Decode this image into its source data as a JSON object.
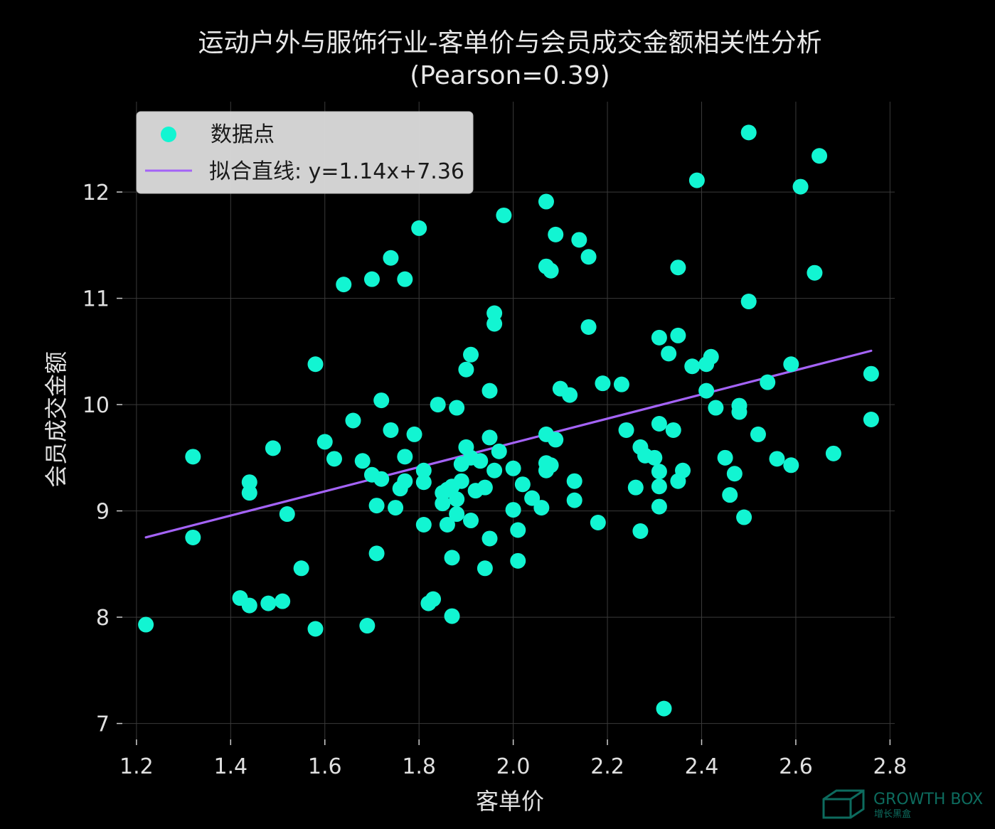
{
  "chart_data": {
    "type": "scatter",
    "title": "运动户外与服饰行业-客单价与会员成交金额相关性分析",
    "subtitle": "(Pearson=0.39)",
    "xlabel": "客单价",
    "ylabel": "会员成交金额",
    "xlim": [
      1.17,
      2.81
    ],
    "ylim": [
      6.85,
      12.85
    ],
    "xticks": [
      "1.2",
      "1.4",
      "1.6",
      "1.8",
      "2.0",
      "2.2",
      "2.4",
      "2.6",
      "2.8"
    ],
    "yticks": [
      "7",
      "8",
      "9",
      "10",
      "11",
      "12"
    ],
    "grid": true,
    "legend_position": "top-left",
    "colors": {
      "points": "#12f5d2",
      "fit_line": "#a463f7",
      "background": "#000000",
      "grid": "#3a3a3a",
      "text": "#e0e0e0"
    },
    "series": [
      {
        "name": "数据点",
        "kind": "scatter",
        "points": [
          [
            1.22,
            7.93
          ],
          [
            1.32,
            8.75
          ],
          [
            1.32,
            9.51
          ],
          [
            1.42,
            8.18
          ],
          [
            1.44,
            8.11
          ],
          [
            1.44,
            9.17
          ],
          [
            1.44,
            9.27
          ],
          [
            1.48,
            8.13
          ],
          [
            1.49,
            9.59
          ],
          [
            1.51,
            8.15
          ],
          [
            1.52,
            8.97
          ],
          [
            1.55,
            8.46
          ],
          [
            1.58,
            7.89
          ],
          [
            1.58,
            10.38
          ],
          [
            1.6,
            9.65
          ],
          [
            1.62,
            9.49
          ],
          [
            1.64,
            11.13
          ],
          [
            1.66,
            9.85
          ],
          [
            1.68,
            9.47
          ],
          [
            1.69,
            7.92
          ],
          [
            1.7,
            9.34
          ],
          [
            1.7,
            11.18
          ],
          [
            1.71,
            8.6
          ],
          [
            1.71,
            9.05
          ],
          [
            1.72,
            9.3
          ],
          [
            1.72,
            10.04
          ],
          [
            1.74,
            9.76
          ],
          [
            1.74,
            11.38
          ],
          [
            1.75,
            9.03
          ],
          [
            1.76,
            9.21
          ],
          [
            1.77,
            9.51
          ],
          [
            1.77,
            11.18
          ],
          [
            1.77,
            9.28
          ],
          [
            1.79,
            9.72
          ],
          [
            1.8,
            11.66
          ],
          [
            1.81,
            9.38
          ],
          [
            1.81,
            9.27
          ],
          [
            1.81,
            8.87
          ],
          [
            1.82,
            8.13
          ],
          [
            1.83,
            8.17
          ],
          [
            1.84,
            10.0
          ],
          [
            1.85,
            9.17
          ],
          [
            1.85,
            9.07
          ],
          [
            1.86,
            9.2
          ],
          [
            1.86,
            8.87
          ],
          [
            1.87,
            9.23
          ],
          [
            1.87,
            8.56
          ],
          [
            1.87,
            8.01
          ],
          [
            1.88,
            9.97
          ],
          [
            1.88,
            9.11
          ],
          [
            1.88,
            8.97
          ],
          [
            1.89,
            9.44
          ],
          [
            1.89,
            9.28
          ],
          [
            1.9,
            9.6
          ],
          [
            1.9,
            10.33
          ],
          [
            1.91,
            10.47
          ],
          [
            1.91,
            9.5
          ],
          [
            1.91,
            8.91
          ],
          [
            1.92,
            9.19
          ],
          [
            1.93,
            9.47
          ],
          [
            1.94,
            9.22
          ],
          [
            1.94,
            8.46
          ],
          [
            1.95,
            10.13
          ],
          [
            1.95,
            8.74
          ],
          [
            1.95,
            9.69
          ],
          [
            1.96,
            10.86
          ],
          [
            1.96,
            10.76
          ],
          [
            1.96,
            9.38
          ],
          [
            1.97,
            9.56
          ],
          [
            1.98,
            11.78
          ],
          [
            2.0,
            9.4
          ],
          [
            2.0,
            9.01
          ],
          [
            2.01,
            8.82
          ],
          [
            2.01,
            8.53
          ],
          [
            2.02,
            9.25
          ],
          [
            2.04,
            9.12
          ],
          [
            2.06,
            9.03
          ],
          [
            2.07,
            11.91
          ],
          [
            2.07,
            11.3
          ],
          [
            2.07,
            9.72
          ],
          [
            2.07,
            9.45
          ],
          [
            2.07,
            9.38
          ],
          [
            2.08,
            11.26
          ],
          [
            2.08,
            9.43
          ],
          [
            2.09,
            11.6
          ],
          [
            2.09,
            9.67
          ],
          [
            2.1,
            10.15
          ],
          [
            2.12,
            10.09
          ],
          [
            2.13,
            9.28
          ],
          [
            2.13,
            9.1
          ],
          [
            2.14,
            11.55
          ],
          [
            2.16,
            11.39
          ],
          [
            2.16,
            10.73
          ],
          [
            2.18,
            8.89
          ],
          [
            2.19,
            10.2
          ],
          [
            2.23,
            10.19
          ],
          [
            2.24,
            9.76
          ],
          [
            2.26,
            9.22
          ],
          [
            2.27,
            9.6
          ],
          [
            2.27,
            8.81
          ],
          [
            2.28,
            9.52
          ],
          [
            2.3,
            9.5
          ],
          [
            2.31,
            10.63
          ],
          [
            2.31,
            9.82
          ],
          [
            2.31,
            9.37
          ],
          [
            2.31,
            9.23
          ],
          [
            2.31,
            9.04
          ],
          [
            2.32,
            7.14
          ],
          [
            2.33,
            10.48
          ],
          [
            2.34,
            9.76
          ],
          [
            2.35,
            11.29
          ],
          [
            2.35,
            10.65
          ],
          [
            2.35,
            9.28
          ],
          [
            2.36,
            9.38
          ],
          [
            2.38,
            10.36
          ],
          [
            2.39,
            12.11
          ],
          [
            2.41,
            10.38
          ],
          [
            2.41,
            10.13
          ],
          [
            2.42,
            10.45
          ],
          [
            2.43,
            9.97
          ],
          [
            2.45,
            9.5
          ],
          [
            2.46,
            9.15
          ],
          [
            2.47,
            9.35
          ],
          [
            2.48,
            9.99
          ],
          [
            2.48,
            9.93
          ],
          [
            2.49,
            8.94
          ],
          [
            2.5,
            12.56
          ],
          [
            2.5,
            10.97
          ],
          [
            2.52,
            9.72
          ],
          [
            2.54,
            10.21
          ],
          [
            2.56,
            9.49
          ],
          [
            2.59,
            10.38
          ],
          [
            2.59,
            9.43
          ],
          [
            2.61,
            12.05
          ],
          [
            2.64,
            11.24
          ],
          [
            2.65,
            12.34
          ],
          [
            2.68,
            9.54
          ],
          [
            2.76,
            10.29
          ],
          [
            2.76,
            9.86
          ]
        ]
      },
      {
        "name": "拟合直线: y=1.14x+7.36",
        "kind": "line",
        "slope": 1.14,
        "intercept": 7.36,
        "x_range": [
          1.22,
          2.76
        ]
      }
    ]
  },
  "watermark": {
    "brand": "GROWTH BOX",
    "sub": "增长黑盒"
  }
}
